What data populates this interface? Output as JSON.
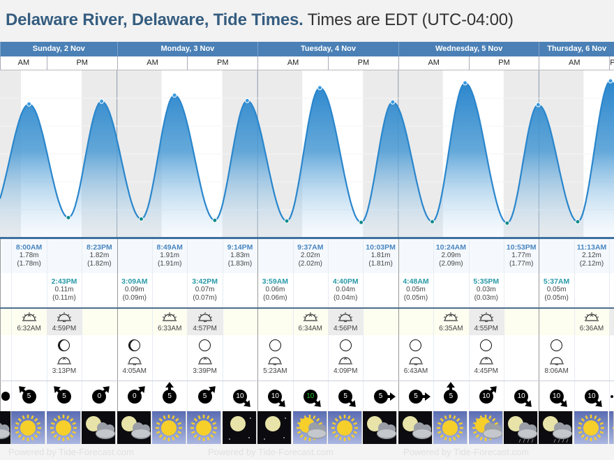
{
  "title": {
    "location": "Delaware River, Delaware, Tide Times.",
    "timezone": "Times are EDT (UTC-04:00)"
  },
  "days": [
    {
      "label": "Sunday, 2 Nov"
    },
    {
      "label": "Monday, 3 Nov"
    },
    {
      "label": "Tuesday, 4 Nov"
    },
    {
      "label": "Wednesday, 5 Nov"
    },
    {
      "label": "Thursday, 6 Nov"
    }
  ],
  "half_labels": {
    "am": "AM",
    "pm": "PM"
  },
  "tides": {
    "high": [
      {
        "col": 1,
        "time": "8:00AM",
        "height": "1.78m",
        "alt": "(1.78m)",
        "value": 1.78,
        "hours": 8.0,
        "day": 0
      },
      {
        "col": 3,
        "time": "8:23PM",
        "height": "1.82m",
        "alt": "(1.82m)",
        "value": 1.82,
        "hours": 20.38,
        "day": 0
      },
      {
        "col": 5,
        "time": "8:49AM",
        "height": "1.91m",
        "alt": "(1.91m)",
        "value": 1.91,
        "hours": 8.82,
        "day": 1
      },
      {
        "col": 7,
        "time": "9:14PM",
        "height": "1.83m",
        "alt": "(1.83m)",
        "value": 1.83,
        "hours": 21.23,
        "day": 1
      },
      {
        "col": 9,
        "time": "9:37AM",
        "height": "2.02m",
        "alt": "(2.02m)",
        "value": 2.02,
        "hours": 9.62,
        "day": 2
      },
      {
        "col": 11,
        "time": "10:03PM",
        "height": "1.81m",
        "alt": "(1.81m)",
        "value": 1.81,
        "hours": 22.05,
        "day": 2
      },
      {
        "col": 13,
        "time": "10:24AM",
        "height": "2.09m",
        "alt": "(2.09m)",
        "value": 2.09,
        "hours": 10.4,
        "day": 3
      },
      {
        "col": 15,
        "time": "10:53PM",
        "height": "1.77m",
        "alt": "(1.77m)",
        "value": 1.77,
        "hours": 22.88,
        "day": 3
      },
      {
        "col": 17,
        "time": "11:13AM",
        "height": "2.12m",
        "alt": "(2.12m)",
        "value": 2.12,
        "hours": 11.22,
        "day": 4
      }
    ],
    "low": [
      {
        "col": 2,
        "time": "2:43PM",
        "height": "0.11m",
        "alt": "(0.11m)",
        "value": 0.11,
        "hours": 14.72,
        "day": 0
      },
      {
        "col": 4,
        "time": "3:09AM",
        "height": "0.09m",
        "alt": "(0.09m)",
        "value": 0.09,
        "hours": 3.15,
        "day": 1
      },
      {
        "col": 6,
        "time": "3:42PM",
        "height": "0.07m",
        "alt": "(0.07m)",
        "value": 0.07,
        "hours": 15.7,
        "day": 1
      },
      {
        "col": 8,
        "time": "3:59AM",
        "height": "0.06m",
        "alt": "(0.06m)",
        "value": 0.06,
        "hours": 3.98,
        "day": 2
      },
      {
        "col": 10,
        "time": "4:40PM",
        "height": "0.04m",
        "alt": "(0.04m)",
        "value": 0.04,
        "hours": 16.67,
        "day": 2
      },
      {
        "col": 12,
        "time": "4:48AM",
        "height": "0.05m",
        "alt": "(0.05m)",
        "value": 0.05,
        "hours": 4.8,
        "day": 3
      },
      {
        "col": 14,
        "time": "5:35PM",
        "height": "0.03m",
        "alt": "(0.03m)",
        "value": 0.03,
        "hours": 17.58,
        "day": 3
      },
      {
        "col": 16,
        "time": "5:37AM",
        "height": "0.05m",
        "alt": "(0.05m)",
        "value": 0.05,
        "hours": 5.62,
        "day": 4
      }
    ]
  },
  "sun": [
    {
      "col": 1,
      "type": "sunrise",
      "time": "6:32AM"
    },
    {
      "col": 2,
      "type": "sunset",
      "time": "4:59PM"
    },
    {
      "col": 5,
      "type": "sunrise",
      "time": "6:33AM"
    },
    {
      "col": 6,
      "type": "sunset",
      "time": "4:57PM"
    },
    {
      "col": 9,
      "type": "sunrise",
      "time": "6:34AM"
    },
    {
      "col": 10,
      "type": "sunset",
      "time": "4:56PM"
    },
    {
      "col": 13,
      "type": "sunrise",
      "time": "6:35AM"
    },
    {
      "col": 14,
      "type": "sunset",
      "time": "4:55PM"
    },
    {
      "col": 17,
      "type": "sunrise",
      "time": "6:36AM"
    }
  ],
  "moon": [
    {
      "col": 2,
      "type": "moonrise",
      "time": "3:13PM"
    },
    {
      "col": 4,
      "type": "moonset",
      "time": "4:05AM"
    },
    {
      "col": 6,
      "type": "moonrise",
      "time": "3:39PM"
    },
    {
      "col": 8,
      "type": "moonset",
      "time": "5:23AM"
    },
    {
      "col": 10,
      "type": "moonrise",
      "time": "4:09PM"
    },
    {
      "col": 12,
      "type": "moonset",
      "time": "6:43AM"
    },
    {
      "col": 14,
      "type": "moonrise",
      "time": "4:45PM"
    },
    {
      "col": 16,
      "type": "moonset",
      "time": "8:06AM"
    }
  ],
  "wind": [
    {
      "speed": "",
      "dir": "se"
    },
    {
      "speed": "5",
      "dir": "nw"
    },
    {
      "speed": "5",
      "dir": "nw"
    },
    {
      "speed": "0",
      "dir": "ne"
    },
    {
      "speed": "0",
      "dir": "ne"
    },
    {
      "speed": "5",
      "dir": "n"
    },
    {
      "speed": "5",
      "dir": "ne"
    },
    {
      "speed": "10",
      "dir": "se"
    },
    {
      "speed": "10",
      "dir": "se"
    },
    {
      "speed": "10",
      "dir": "se",
      "color": "#22cc22"
    },
    {
      "speed": "5",
      "dir": "se"
    },
    {
      "speed": "5",
      "dir": "e"
    },
    {
      "speed": "5",
      "dir": "e"
    },
    {
      "speed": "5",
      "dir": "n"
    },
    {
      "speed": "10",
      "dir": "ne"
    },
    {
      "speed": "10",
      "dir": "se"
    },
    {
      "speed": "10",
      "dir": "se"
    },
    {
      "speed": "10",
      "dir": "se"
    },
    {
      "speed": "",
      "dir": "se"
    }
  ],
  "weather": [
    "night-cloudy",
    "sunny",
    "sunny",
    "night-partly-cloudy",
    "night-partly-cloudy",
    "sunny",
    "sunny",
    "night-clear",
    "night-clear",
    "partly-cloudy",
    "sunny",
    "night-partly-cloudy",
    "night-partly-cloudy",
    "sunny",
    "partly-cloudy",
    "night-rain",
    "night-rain",
    "sunny",
    "sunny"
  ],
  "footer": {
    "text": "Powered by Tide-Forecast.com"
  },
  "colors": {
    "header": "#4a80b6",
    "title": "#355d80",
    "high": "#4a86c0",
    "low": "#2a9aa8",
    "tide": "#2a86cc"
  }
}
